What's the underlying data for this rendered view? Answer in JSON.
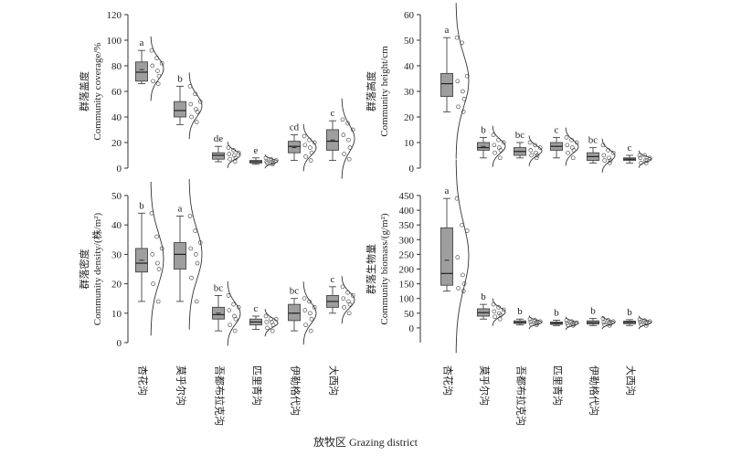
{
  "x_title": "放牧区 Grazing district",
  "chart_data": [
    {
      "type": "box",
      "ylabel_cn": "群落盖度",
      "ylabel_en": "Community coverage/%",
      "ylim": [
        0,
        120
      ],
      "yticks": [
        0,
        20,
        40,
        60,
        80,
        100,
        120
      ],
      "categories": [
        "杏花沟",
        "莫乎尔沟",
        "吾都布拉克沟",
        "匹里青沟",
        "伊勒格代沟",
        "大西沟"
      ],
      "letters": [
        "a",
        "b",
        "de",
        "e",
        "cd",
        "c"
      ],
      "boxes": [
        {
          "min": 66,
          "q1": 68,
          "median": 75,
          "mean": 77,
          "q3": 83,
          "max": 92
        },
        {
          "min": 34,
          "q1": 40,
          "median": 45,
          "mean": 45,
          "q3": 52,
          "max": 64
        },
        {
          "min": 5,
          "q1": 7,
          "median": 10,
          "mean": 10,
          "q3": 12,
          "max": 17
        },
        {
          "min": 3,
          "q1": 4,
          "median": 5,
          "mean": 5,
          "q3": 6,
          "max": 8
        },
        {
          "min": 6,
          "q1": 12,
          "median": 17,
          "mean": 16,
          "q3": 21,
          "max": 26
        },
        {
          "min": 6,
          "q1": 14,
          "median": 21,
          "mean": 22,
          "q3": 30,
          "max": 37
        }
      ],
      "points": [
        [
          92,
          86,
          82,
          80,
          76,
          72,
          68,
          66
        ],
        [
          64,
          58,
          52,
          50,
          46,
          44,
          40,
          36
        ],
        [
          16,
          14,
          12,
          11,
          10,
          8,
          7,
          5
        ],
        [
          8,
          7,
          6,
          5,
          5,
          4,
          4,
          3
        ],
        [
          25,
          22,
          20,
          18,
          16,
          12,
          9,
          6
        ],
        [
          38,
          35,
          30,
          26,
          22,
          16,
          11,
          7
        ]
      ]
    },
    {
      "type": "box",
      "ylabel_cn": "群落高度",
      "ylabel_en": "Community height/cm",
      "ylim": [
        0,
        60
      ],
      "yticks": [
        0,
        10,
        20,
        30,
        40,
        50,
        60
      ],
      "categories": [
        "杏花沟",
        "莫乎尔沟",
        "吾都布拉克沟",
        "匹里青沟",
        "伊勒格代沟",
        "大西沟"
      ],
      "letters": [
        "a",
        "b",
        "bc",
        "c",
        "bc",
        "c"
      ],
      "boxes": [
        {
          "min": 22,
          "q1": 28,
          "median": 33,
          "mean": 33,
          "q3": 37,
          "max": 51
        },
        {
          "min": 4,
          "q1": 7,
          "median": 8,
          "mean": 8.5,
          "q3": 10,
          "max": 12
        },
        {
          "min": 4,
          "q1": 5,
          "median": 6.5,
          "mean": 6.5,
          "q3": 8,
          "max": 10
        },
        {
          "min": 4,
          "q1": 7,
          "median": 8.5,
          "mean": 8.5,
          "q3": 10,
          "max": 12
        },
        {
          "min": 2,
          "q1": 3,
          "median": 4.5,
          "mean": 4.5,
          "q3": 6,
          "max": 8
        },
        {
          "min": 2,
          "q1": 3,
          "median": 3.5,
          "mean": 3.5,
          "q3": 4,
          "max": 5
        }
      ],
      "points": [
        [
          51,
          49,
          36,
          34,
          30,
          27,
          24,
          22
        ],
        [
          13,
          11,
          10,
          9,
          8,
          7,
          6,
          4
        ],
        [
          10,
          9,
          8,
          7,
          6,
          5,
          5,
          4
        ],
        [
          12,
          11,
          10,
          9,
          8,
          7,
          6,
          4
        ],
        [
          9,
          7,
          6,
          5,
          4,
          3,
          3,
          2
        ],
        [
          5,
          5,
          4,
          4,
          3,
          3,
          2,
          2
        ]
      ]
    },
    {
      "type": "box",
      "ylabel_cn": "群落密度",
      "ylabel_en": "Community density/(株/m²)",
      "ylim": [
        0,
        50
      ],
      "yticks": [
        0,
        10,
        20,
        30,
        40,
        50
      ],
      "categories": [
        "杏花沟",
        "莫乎尔沟",
        "吾都布拉克沟",
        "匹里青沟",
        "伊勒格代沟",
        "大西沟"
      ],
      "letters": [
        "b",
        "a",
        "bc",
        "c",
        "bc",
        "c"
      ],
      "boxes": [
        {
          "min": 14,
          "q1": 24,
          "median": 27,
          "mean": 28,
          "q3": 32,
          "max": 44
        },
        {
          "min": 14,
          "q1": 25,
          "median": 30,
          "mean": 30,
          "q3": 34,
          "max": 43
        },
        {
          "min": 4,
          "q1": 8,
          "median": 9.5,
          "mean": 10,
          "q3": 12,
          "max": 16
        },
        {
          "min": 4.5,
          "q1": 6,
          "median": 7,
          "mean": 7,
          "q3": 8,
          "max": 9
        },
        {
          "min": 4,
          "q1": 7.5,
          "median": 10,
          "mean": 10,
          "q3": 13,
          "max": 15
        },
        {
          "min": 10,
          "q1": 12,
          "median": 14,
          "mean": 14,
          "q3": 16,
          "max": 19
        }
      ],
      "points": [
        [
          44,
          36,
          32,
          30,
          27,
          25,
          20,
          14
        ],
        [
          43,
          38,
          34,
          32,
          30,
          27,
          22,
          14
        ],
        [
          16,
          13,
          12,
          11,
          9,
          8,
          6,
          4
        ],
        [
          9,
          8,
          8,
          7,
          7,
          6,
          5,
          4
        ],
        [
          15,
          14,
          12,
          11,
          10,
          8,
          6,
          4
        ],
        [
          19,
          17,
          16,
          15,
          14,
          13,
          12,
          10
        ]
      ]
    },
    {
      "type": "box",
      "ylabel_cn": "群落生物量",
      "ylabel_en": "Community biomass/(g/m²)",
      "ylim": [
        -50,
        450
      ],
      "yticks": [
        0,
        50,
        100,
        150,
        200,
        250,
        300,
        350,
        400,
        450
      ],
      "categories": [
        "杏花沟",
        "莫乎尔沟",
        "吾都布拉克沟",
        "匹里青沟",
        "伊勒格代沟",
        "大西沟"
      ],
      "letters": [
        "a",
        "b",
        "b",
        "b",
        "b",
        "b"
      ],
      "boxes": [
        {
          "min": 125,
          "q1": 145,
          "median": 185,
          "mean": 230,
          "q3": 340,
          "max": 440
        },
        {
          "min": 30,
          "q1": 40,
          "median": 52,
          "mean": 52,
          "q3": 65,
          "max": 80
        },
        {
          "min": 10,
          "q1": 15,
          "median": 19,
          "mean": 19,
          "q3": 24,
          "max": 30
        },
        {
          "min": 8,
          "q1": 12,
          "median": 16,
          "mean": 16,
          "q3": 20,
          "max": 26
        },
        {
          "min": 8,
          "q1": 13,
          "median": 18,
          "mean": 18,
          "q3": 24,
          "max": 32
        },
        {
          "min": 8,
          "q1": 14,
          "median": 19,
          "mean": 19,
          "q3": 23,
          "max": 28
        }
      ],
      "points": [
        [
          440,
          350,
          330,
          240,
          180,
          150,
          135,
          125
        ],
        [
          80,
          70,
          62,
          56,
          50,
          44,
          38,
          30
        ],
        [
          30,
          26,
          22,
          20,
          18,
          15,
          12,
          10
        ],
        [
          26,
          22,
          18,
          16,
          14,
          12,
          10,
          8
        ],
        [
          32,
          26,
          22,
          19,
          16,
          14,
          11,
          8
        ],
        [
          28,
          25,
          22,
          20,
          18,
          15,
          12,
          8
        ]
      ]
    }
  ]
}
